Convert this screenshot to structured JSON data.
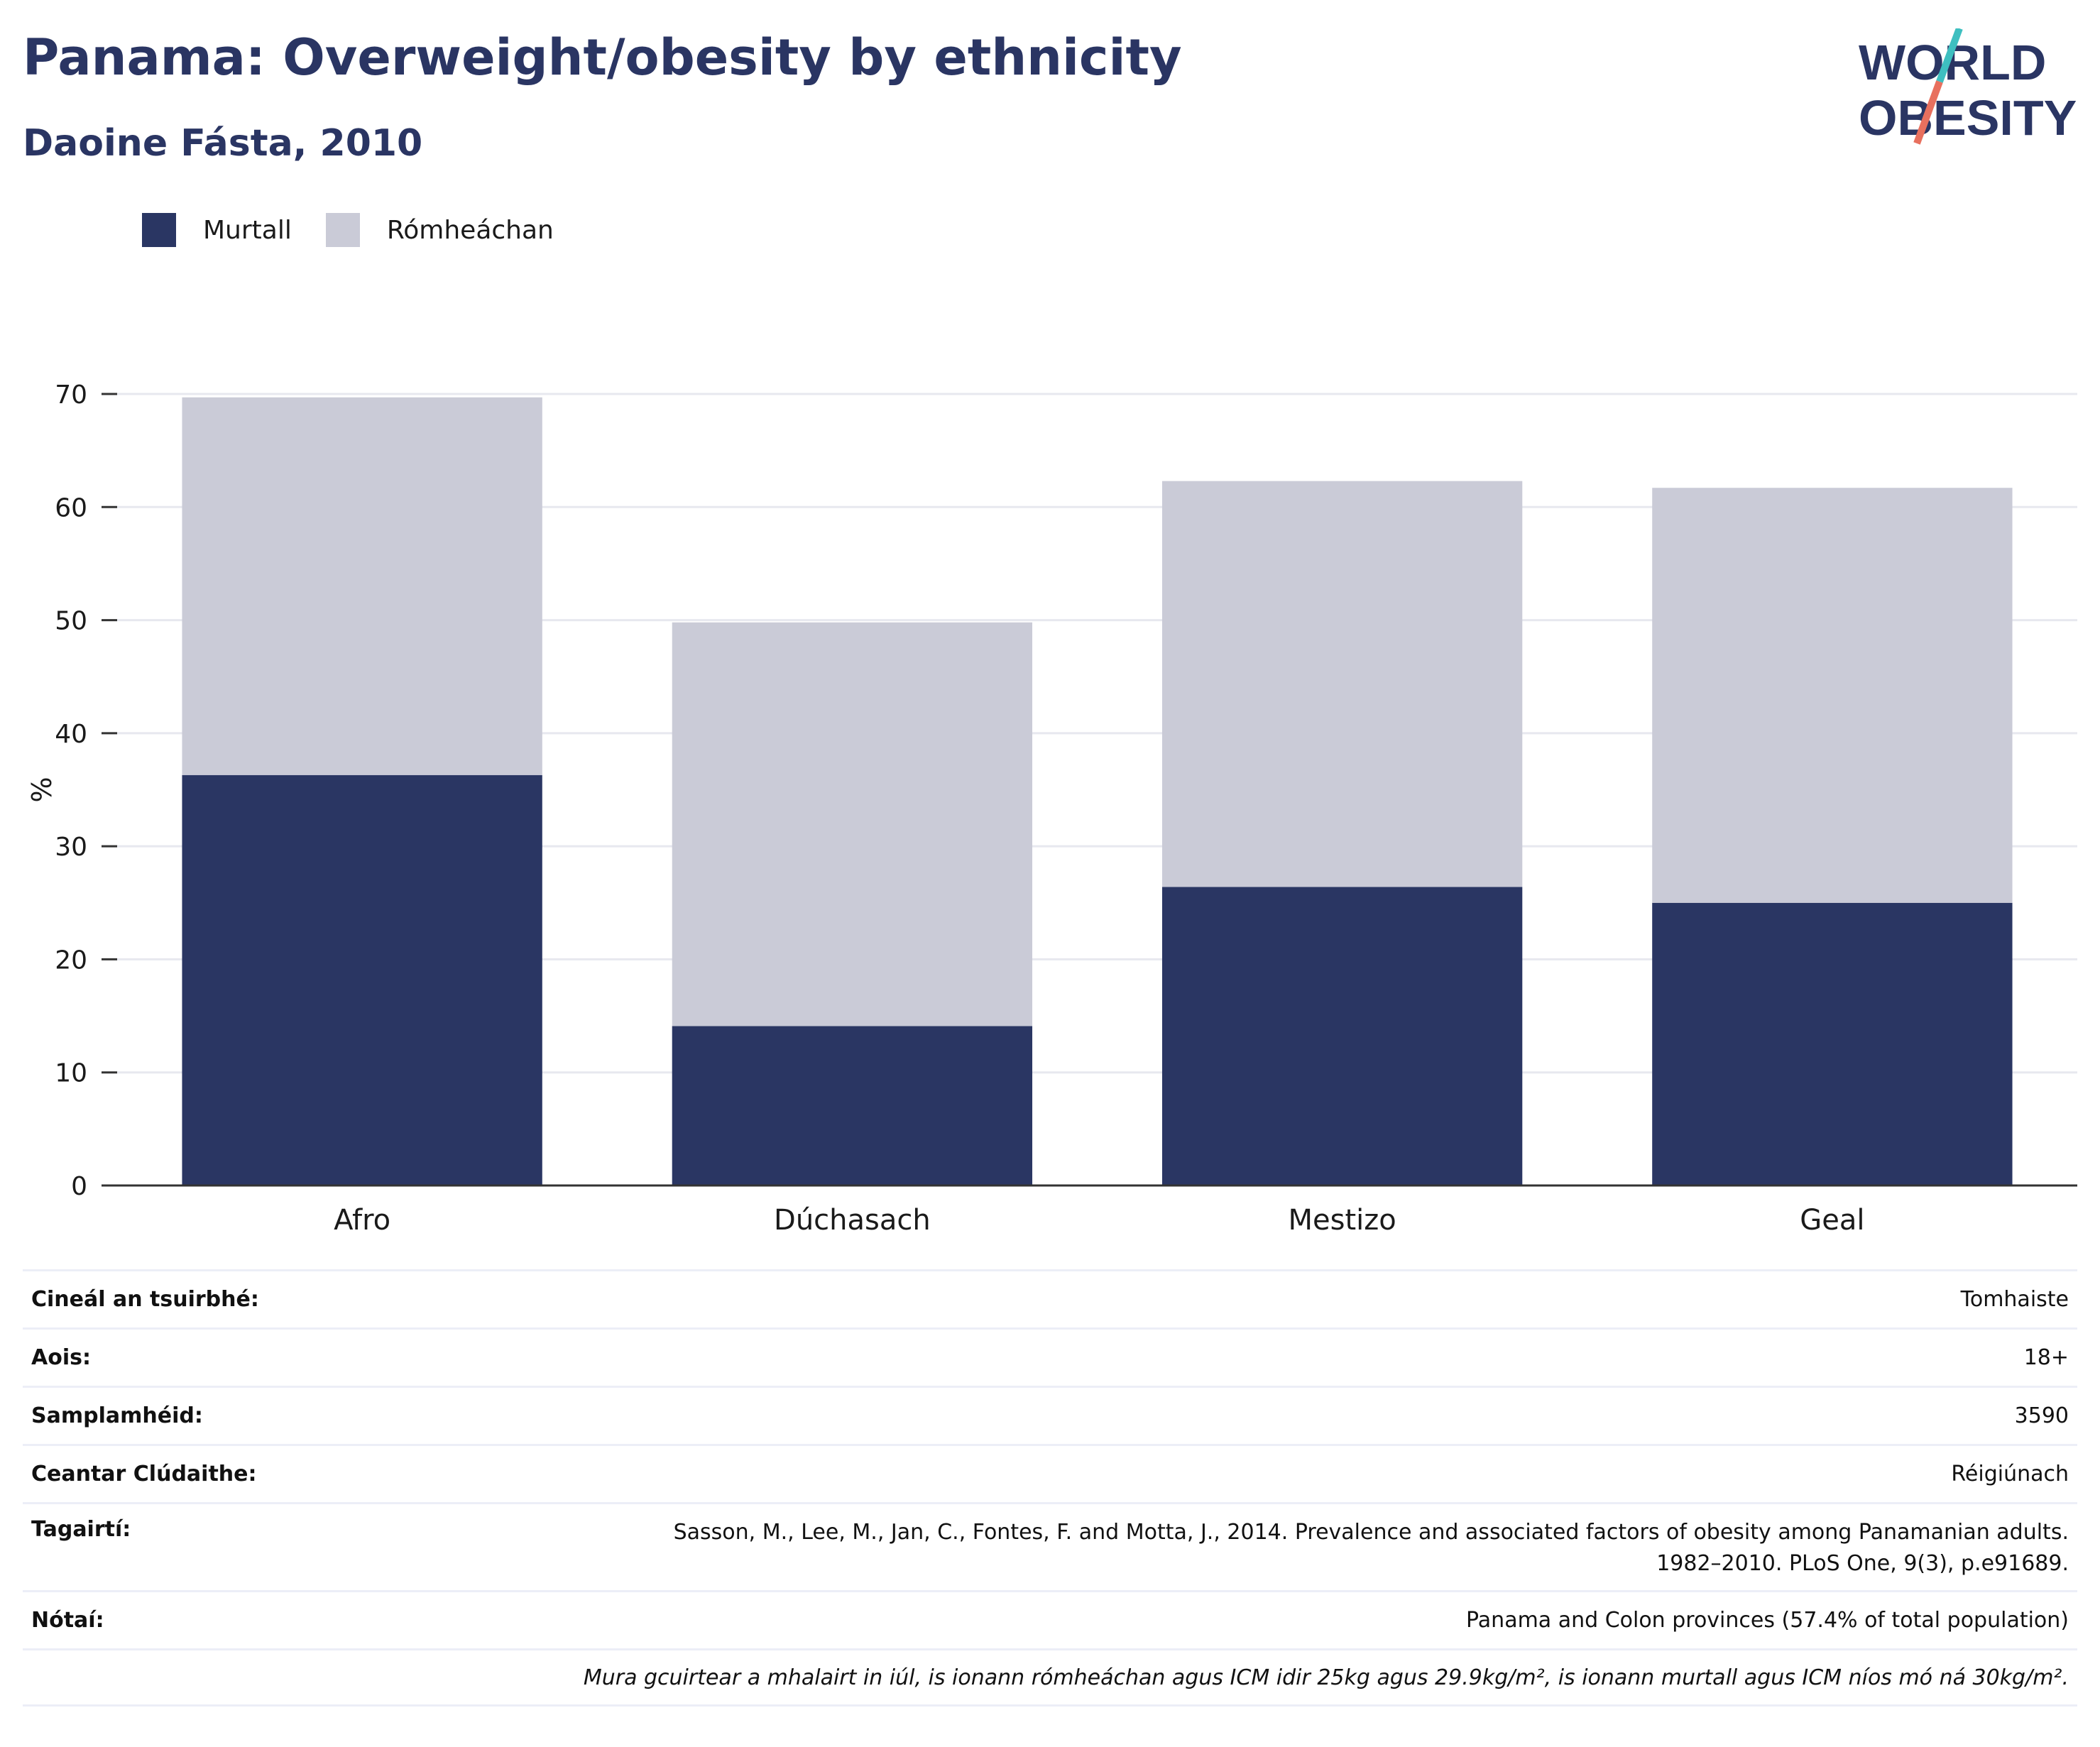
{
  "header": {
    "title": "Panama: Overweight/obesity by ethnicity",
    "subtitle": "Daoine Fásta, 2010"
  },
  "logo": {
    "line1": "WORLD",
    "line2": "OBESITY"
  },
  "colors": {
    "obese": "#2a3663",
    "overweight": "#cacbd7",
    "title": "#2a3563",
    "logo_teal": "#3ebfc0",
    "logo_coral": "#e8705e"
  },
  "chart_data": {
    "type": "bar",
    "stacked": true,
    "categories": [
      "Afro",
      "Dúchasach",
      "Mestizo",
      "Geal"
    ],
    "series": [
      {
        "name": "Murtall",
        "values": [
          36.3,
          14.1,
          26.4,
          25.0
        ]
      },
      {
        "name": "Rómheáchan",
        "values": [
          33.4,
          35.7,
          35.9,
          36.7
        ]
      }
    ],
    "ylabel": "%",
    "ylim": [
      0,
      70
    ],
    "yticks": [
      0,
      10,
      20,
      30,
      40,
      50,
      60,
      70
    ],
    "grid": true,
    "legend_position": "top-left"
  },
  "meta": {
    "survey_type_label": "Cineál an tsuirbhé:",
    "survey_type_value": "Tomhaiste",
    "age_label": "Aois:",
    "age_value": "18+",
    "sample_label": "Samplamhéid:",
    "sample_value": "3590",
    "area_label": "Ceantar Clúdaithe:",
    "area_value": "Réigiúnach",
    "references_label": "Tagairtí:",
    "references_line1": "Sasson, M., Lee, M., Jan, C., Fontes, F. and Motta, J., 2014. Prevalence and associated factors of obesity among Panamanian adults.",
    "references_line2": "1982–2010. PLoS One, 9(3), p.e91689.",
    "notes_label": "Nótaí:",
    "notes_value": "Panama and Colon provinces (57.4% of total population)",
    "definition": "Mura gcuirtear a mhalairt in iúl, is ionann rómheáchan agus ICM idir 25kg agus 29.9kg/m², is ionann murtall agus ICM níos mó ná 30kg/m²."
  }
}
